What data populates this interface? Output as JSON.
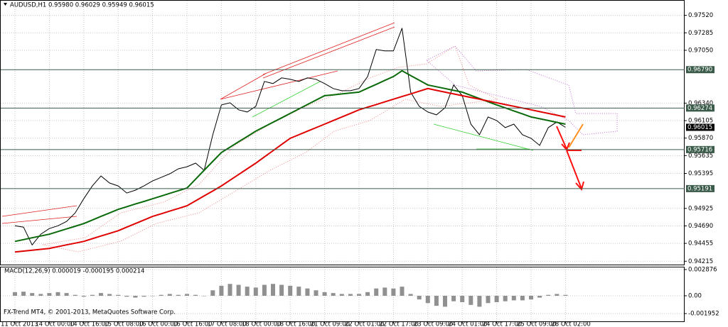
{
  "chart_data": [
    {
      "type": "line",
      "title": "AUDUSD,H1  0.95980 0.96029 0.95949 0.96015",
      "categories": [
        "11 Oct 2013",
        null,
        null,
        null,
        "14 Oct 00:00",
        null,
        null,
        null,
        "14 Oct 16:00",
        null,
        null,
        null,
        "15 Oct 08:00",
        null,
        null,
        null,
        "16 Oct 00:00",
        null,
        null,
        null,
        "16 Oct 16:00",
        null,
        null,
        null,
        "17 Oct 08:00",
        null,
        null,
        null,
        "18 Oct 00:00",
        null,
        null,
        null,
        "18 Oct 16:00",
        null,
        null,
        null,
        "21 Oct 09:00",
        null,
        null,
        null,
        "22 Oct 01:00",
        null,
        null,
        null,
        "22 Oct 17:00",
        null,
        null,
        null,
        "23 Oct 09:00",
        null,
        null,
        null,
        "24 Oct 01:00",
        null,
        null,
        null,
        "24 Oct 17:00",
        null,
        null,
        null,
        "25 Oct 09:00",
        null,
        null,
        null,
        "28 Oct 02:00"
      ],
      "series": [
        {
          "color": "#000000",
          "values": [
            0.94692,
            0.94673,
            0.94434,
            0.94578,
            0.94654,
            0.94692,
            0.9475,
            0.94864,
            0.95055,
            0.95227,
            0.95361,
            0.95266,
            0.95227,
            0.95132,
            0.9517,
            0.95227,
            0.95294,
            0.95342,
            0.9539,
            0.95457,
            0.95485,
            0.95533,
            0.95437,
            0.95915,
            0.96316,
            0.96345,
            0.9625,
            0.96221,
            0.96297,
            0.96632,
            0.96603,
            0.96679,
            0.9666,
            0.96632,
            0.96679,
            0.9666,
            0.96603,
            0.96536,
            0.96507,
            0.96507,
            0.96536,
            0.96698,
            0.97061,
            0.97042,
            0.97042,
            0.97348,
            0.96488,
            0.96297,
            0.96221,
            0.96183,
            0.96278,
            0.96584,
            0.9644,
            0.96058,
            0.95915,
            0.96154,
            0.96106,
            0.96011,
            0.96058,
            0.95915,
            0.95867,
            0.95772,
            0.96011,
            0.96087,
            0.96015
          ]
        },
        {
          "color": "#0a6a0a",
          "values": [
            0.94482,
            0.94506,
            0.9453,
            0.94554,
            0.94578,
            0.94614,
            0.9465,
            0.94685,
            0.94721,
            0.94769,
            0.94817,
            0.94864,
            0.94912,
            0.94948,
            0.94984,
            0.95019,
            0.95055,
            0.95091,
            0.95127,
            0.95163,
            0.95199,
            0.95318,
            0.95438,
            0.95557,
            0.95676,
            0.95748,
            0.9582,
            0.95891,
            0.95963,
            0.96023,
            0.96083,
            0.96142,
            0.96202,
            0.96262,
            0.96321,
            0.96381,
            0.9644,
            0.96452,
            0.96464,
            0.96476,
            0.96488,
            0.96541,
            0.96593,
            0.96646,
            0.96698,
            0.96775,
            0.96711,
            0.96648,
            0.96584,
            0.9656,
            0.96536,
            0.96512,
            0.96488,
            0.96445,
            0.96402,
            0.96359,
            0.96316,
            0.96276,
            0.96235,
            0.96195,
            0.96154,
            0.9613,
            0.96106,
            0.96082,
            0.96058
          ]
        },
        {
          "color": "#e00000",
          "values": [
            0.94339,
            0.94351,
            0.94363,
            0.94375,
            0.94387,
            0.94411,
            0.94435,
            0.94458,
            0.94482,
            0.94518,
            0.94554,
            0.94589,
            0.94625,
            0.94673,
            0.94721,
            0.94769,
            0.94817,
            0.94853,
            0.94889,
            0.94924,
            0.9496,
            0.95027,
            0.95094,
            0.9516,
            0.95227,
            0.95304,
            0.9538,
            0.95457,
            0.95533,
            0.95617,
            0.957,
            0.95784,
            0.95867,
            0.95915,
            0.95963,
            0.9601,
            0.96058,
            0.96106,
            0.96154,
            0.96202,
            0.9625,
            0.96286,
            0.96321,
            0.96357,
            0.96393,
            0.96429,
            0.96464,
            0.965,
            0.96536,
            0.96512,
            0.96488,
            0.96464,
            0.9644,
            0.96416,
            0.96393,
            0.96369,
            0.96345,
            0.96321,
            0.96298,
            0.96274,
            0.9625,
            0.96226,
            0.96202,
            0.96178,
            0.96154
          ]
        }
      ],
      "ylim": [
        0.9417,
        0.9765
      ],
      "yticks": [
        {
          "value": 0.9752,
          "label": "0.97520"
        },
        0.97285,
        {
          "value": 0.9705,
          "label": "0.97050"
        },
        {
          "value": 0.9634,
          "label": "0.96340"
        },
        0.96105,
        {
          "value": 0.9587,
          "label": "0.95870"
        },
        0.95635,
        0.95395,
        0.94925,
        {
          "value": 0.9469,
          "label": "0.94690"
        },
        0.94455,
        0.94215
      ],
      "levels": [
        {
          "value": 0.9679,
          "label": "0.96790"
        },
        0.96274,
        0.95716,
        0.95191
      ],
      "last": 0.96015,
      "grid": true
    },
    {
      "type": "bar",
      "title": "MACD(12,26,9) 0.000019 -0.000195 0.000214",
      "color": "#909090",
      "values": [
        0.0004,
        0.00045,
        0.0003,
        0.0002,
        0.0003,
        0.0004,
        0.0003,
        0.0001,
        -0.0001,
        0.0001,
        0.0003,
        0.0002,
        0.0001,
        -0.0001,
        -0.0002,
        -0.0001,
        0,
        0.0001,
        0.0002,
        0.0001,
        0.0002,
        0.0001,
        0,
        0.0006,
        0.0011,
        0.0013,
        0.0012,
        0.001,
        0.0009,
        0.0012,
        0.0013,
        0.0012,
        0.0011,
        0.001,
        0.0008,
        0.0006,
        0.0004,
        0.0003,
        0.0002,
        0.0002,
        0.0002,
        0.0004,
        0.0008,
        0.0009,
        0.0008,
        0.001,
        0.0002,
        -0.0004,
        -0.0008,
        -0.0011,
        -0.0012,
        -0.0006,
        -0.0007,
        -0.001,
        -0.0012,
        -0.0008,
        -0.0007,
        -0.0006,
        -0.0005,
        -0.0005,
        -0.0004,
        -0.0002,
        0.0001,
        0.0002,
        0.0001
      ],
      "ylim": [
        -0.0028,
        0.00311
      ],
      "yticks": [
        0.002876,
        {
          "value": 0,
          "label": "0.00"
        },
        -0.001952
      ]
    }
  ],
  "footer": "FX-Trend MT4, © 2001-2013, MetaQuotes Software Corp."
}
